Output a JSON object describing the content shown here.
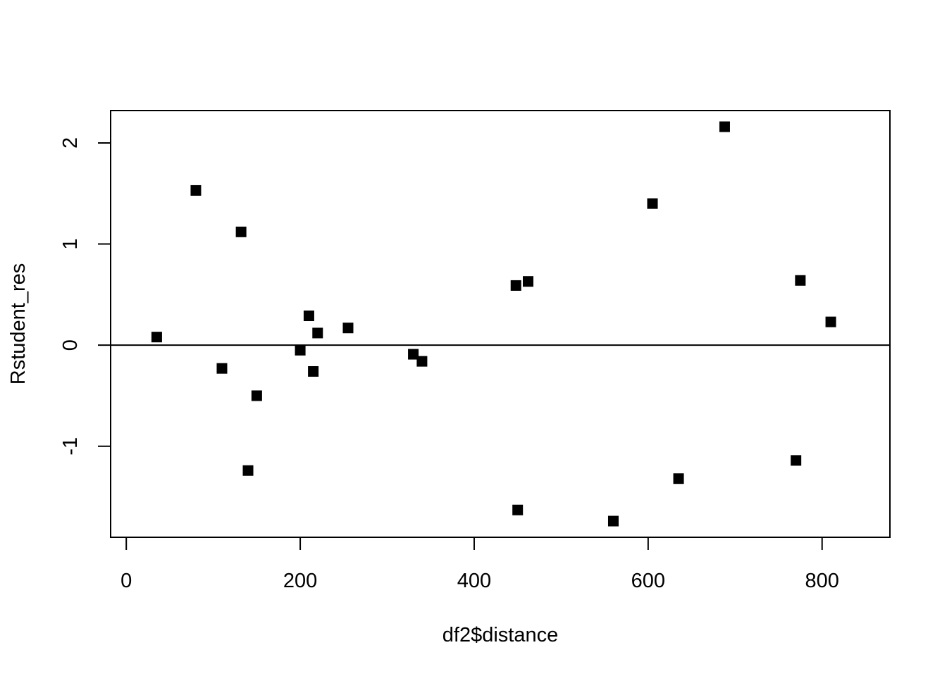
{
  "chart_data": {
    "type": "scatter",
    "title": "",
    "xlabel": "df2$distance",
    "ylabel": "Rstudent_res",
    "xlim": [
      -18,
      878
    ],
    "ylim": [
      -1.9,
      2.32
    ],
    "x_ticks": [
      0,
      200,
      400,
      600,
      800
    ],
    "x_tick_labels": [
      "0",
      "200",
      "400",
      "600",
      "800"
    ],
    "y_ticks": [
      -1,
      0,
      1,
      2
    ],
    "y_tick_labels": [
      "-1",
      "0",
      "1",
      "2"
    ],
    "reference_line": {
      "y": 0
    },
    "grid": false,
    "marker": "filled-square",
    "marker_color": "#000000",
    "points": [
      {
        "x": 35,
        "y": 0.08
      },
      {
        "x": 80,
        "y": 1.53
      },
      {
        "x": 110,
        "y": -0.23
      },
      {
        "x": 132,
        "y": 1.12
      },
      {
        "x": 140,
        "y": -1.24
      },
      {
        "x": 150,
        "y": -0.5
      },
      {
        "x": 200,
        "y": -0.05
      },
      {
        "x": 210,
        "y": 0.29
      },
      {
        "x": 215,
        "y": -0.26
      },
      {
        "x": 220,
        "y": 0.12
      },
      {
        "x": 255,
        "y": 0.17
      },
      {
        "x": 330,
        "y": -0.09
      },
      {
        "x": 340,
        "y": -0.16
      },
      {
        "x": 448,
        "y": 0.59
      },
      {
        "x": 450,
        "y": -1.63
      },
      {
        "x": 462,
        "y": 0.63
      },
      {
        "x": 560,
        "y": -1.74
      },
      {
        "x": 605,
        "y": 1.4
      },
      {
        "x": 635,
        "y": -1.32
      },
      {
        "x": 688,
        "y": 2.16
      },
      {
        "x": 770,
        "y": -1.14
      },
      {
        "x": 775,
        "y": 0.64
      },
      {
        "x": 810,
        "y": 0.23
      }
    ]
  }
}
